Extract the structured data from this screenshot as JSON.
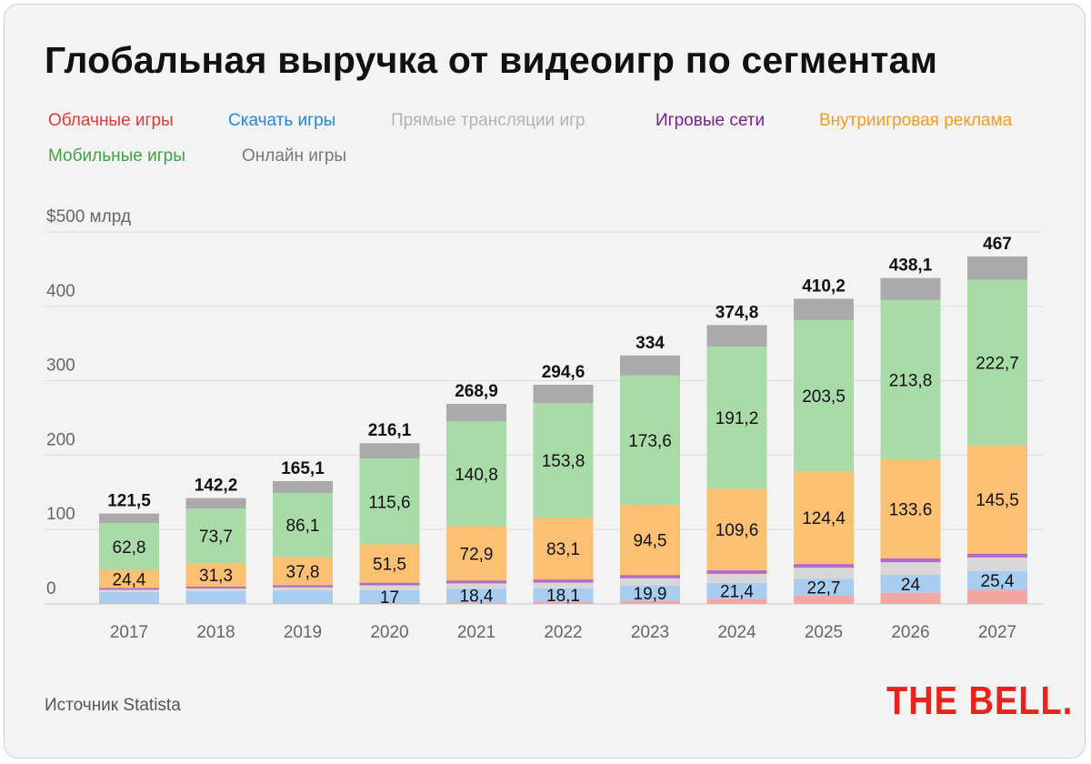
{
  "header": {
    "title": "Глобальная выручка от видеоигр по сегментам"
  },
  "legend": [
    {
      "label": "Облачные игры",
      "color": "#e53935"
    },
    {
      "label": "Скачать игры",
      "color": "#1e88e5"
    },
    {
      "label": "Прямые трансляции игр",
      "color": "#b3b3b3"
    },
    {
      "label": "Игровые сети",
      "color": "#7b1f8c"
    },
    {
      "label": "Внутриигровая реклама",
      "color": "#f39c1e"
    },
    {
      "label": "Мобильные игры",
      "color": "#43a047"
    },
    {
      "label": "Онлайн игры",
      "color": "#777777"
    }
  ],
  "footer": {
    "source": "Источник Statista",
    "brand": "THE BELL."
  },
  "chart_data": {
    "type": "bar",
    "stacked": true,
    "title": "Глобальная выручка от видеоигр по сегментам",
    "ylim": [
      0,
      500
    ],
    "yticks": [
      0,
      100,
      200,
      300,
      400,
      500
    ],
    "ytick_labels": [
      "0",
      "100",
      "200",
      "300",
      "400",
      "$500 млрд"
    ],
    "grid": true,
    "legend_position": "top",
    "categories": [
      "2017",
      "2018",
      "2019",
      "2020",
      "2021",
      "2022",
      "2023",
      "2024",
      "2025",
      "2026",
      "2027"
    ],
    "totals": [
      121.5,
      142.2,
      165.1,
      216.1,
      268.9,
      294.6,
      334,
      374.8,
      410.2,
      438.1,
      467
    ],
    "total_labels": [
      "121,5",
      "142,2",
      "165,1",
      "216,1",
      "268,9",
      "294,6",
      "334",
      "374,8",
      "410,2",
      "438,1",
      "467"
    ],
    "series": [
      {
        "name": "Облачные игры",
        "color": "#f4a6a2",
        "values": [
          0.5,
          0.8,
          1.0,
          1.5,
          2.2,
          3.0,
          4.5,
          7.0,
          11.0,
          15.0,
          19.0
        ]
      },
      {
        "name": "Скачать игры",
        "color": "#a7cdf0",
        "values": [
          15.5,
          16.5,
          16.8,
          17,
          18.4,
          18.1,
          19.9,
          21.4,
          22.7,
          24,
          25.4
        ],
        "labels": [
          "",
          "",
          "",
          "17",
          "18,4",
          "18,1",
          "19,9",
          "21,4",
          "22,7",
          "24",
          "25,4"
        ]
      },
      {
        "name": "Прямые трансляции игр",
        "color": "#d7d7d7",
        "values": [
          3.0,
          3.5,
          4.5,
          6.5,
          7.0,
          7.5,
          10.0,
          12.0,
          15.0,
          17.0,
          18.0
        ]
      },
      {
        "name": "Игровые сети",
        "color": "#b36bc4",
        "values": [
          2.5,
          2.5,
          3.0,
          3.5,
          4.0,
          4.3,
          4.5,
          4.8,
          5.0,
          5.1,
          5.2
        ]
      },
      {
        "name": "Внутриигровая реклама",
        "color": "#fbc072",
        "values": [
          24.4,
          31.3,
          37.8,
          51.5,
          72.9,
          83.1,
          94.5,
          109.6,
          124.4,
          133.6,
          145.5
        ],
        "labels": [
          "24,4",
          "31,3",
          "37,8",
          "51,5",
          "72,9",
          "83,1",
          "94,5",
          "109,6",
          "124,4",
          "133.6",
          "145,5"
        ]
      },
      {
        "name": "Мобильные игры",
        "color": "#a8dba8",
        "values": [
          62.8,
          73.7,
          86.1,
          115.6,
          140.8,
          153.8,
          173.6,
          191.2,
          203.5,
          213.8,
          222.7
        ],
        "labels": [
          "62,8",
          "73,7",
          "86,1",
          "115,6",
          "140,8",
          "153,8",
          "173,6",
          "191,2",
          "203,5",
          "213,8",
          "222,7"
        ]
      },
      {
        "name": "Онлайн игры",
        "color": "#aaaaaa",
        "values": [
          12.8,
          13.9,
          15.9,
          20.5,
          23.6,
          24.8,
          27.0,
          28.8,
          28.6,
          29.6,
          31.2
        ]
      }
    ]
  }
}
